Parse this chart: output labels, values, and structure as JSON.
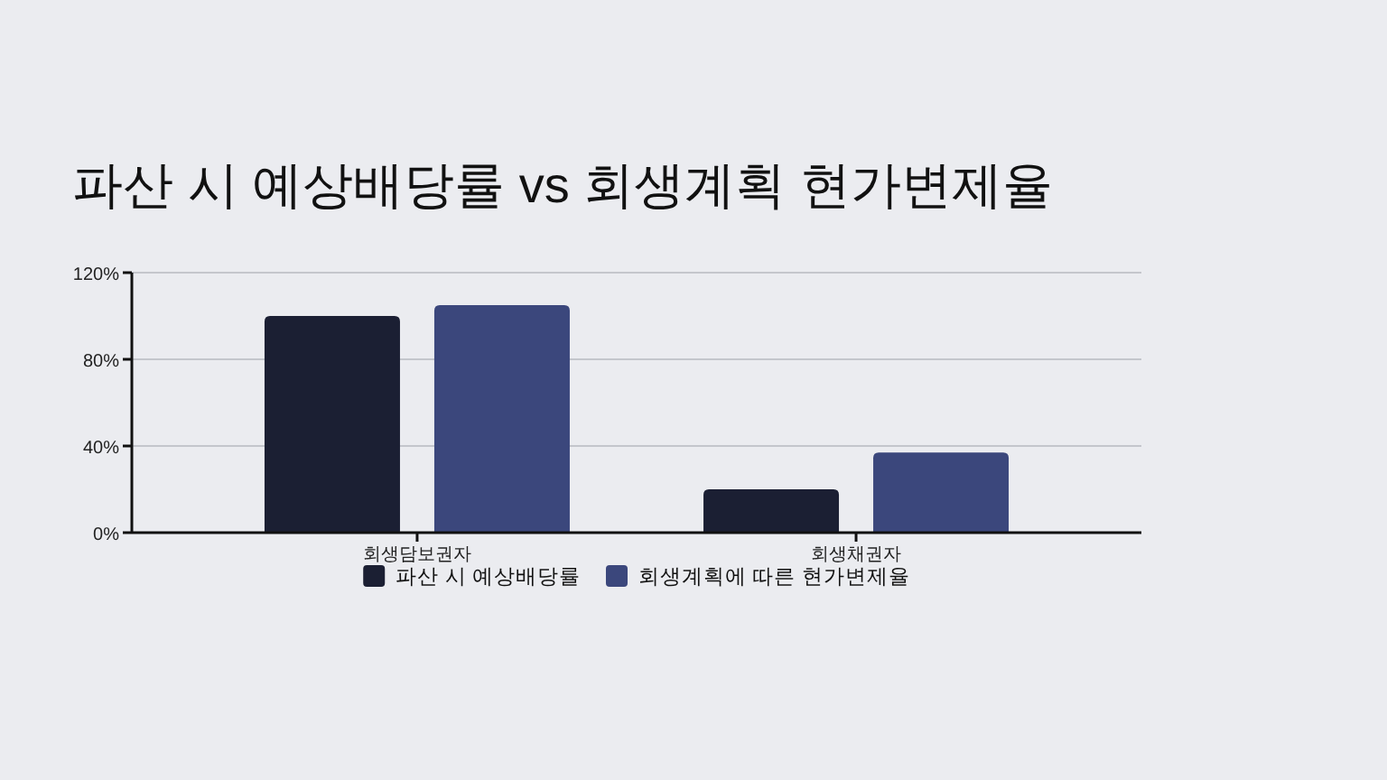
{
  "chart_data": {
    "type": "bar",
    "title": "파산 시 예상배당률 vs 회생계획 현가변제율",
    "categories": [
      "회생담보권자",
      "회생채권자"
    ],
    "series": [
      {
        "name": "파산 시 예상배당률",
        "color": "#1b1f33",
        "values": [
          100,
          20
        ]
      },
      {
        "name": "회생계획에 따른 현가변제율",
        "color": "#3b477c",
        "values": [
          105,
          37
        ]
      }
    ],
    "ylim": [
      0,
      120
    ],
    "yticks": [
      {
        "value": 0,
        "label": "0%"
      },
      {
        "value": 40,
        "label": "40%"
      },
      {
        "value": 80,
        "label": "80%"
      },
      {
        "value": 120,
        "label": "120%"
      }
    ],
    "grid": "y",
    "legend": "bottom"
  }
}
